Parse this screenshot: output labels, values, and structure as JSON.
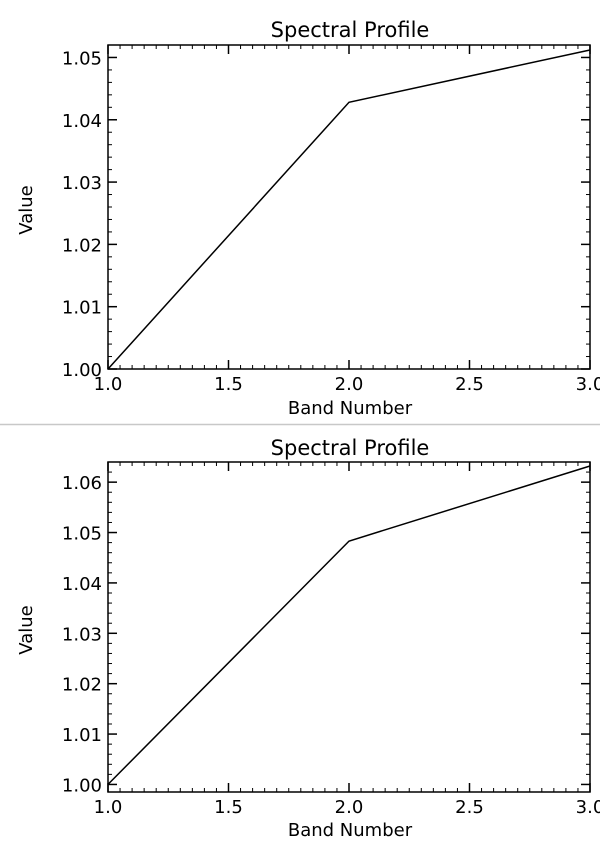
{
  "chart_data": [
    {
      "type": "line",
      "title": "Spectral Profile",
      "xlabel": "Band Number",
      "ylabel": "Value",
      "xlim": [
        1.0,
        3.0
      ],
      "ylim": [
        1.0,
        1.052
      ],
      "x_ticks": [
        "1.0",
        "1.5",
        "2.0",
        "2.5",
        "3.0"
      ],
      "y_ticks": [
        "1.00",
        "1.01",
        "1.02",
        "1.03",
        "1.04",
        "1.05"
      ],
      "x_tick_values": [
        1.0,
        1.5,
        2.0,
        2.5,
        3.0
      ],
      "y_tick_values": [
        1.0,
        1.01,
        1.02,
        1.03,
        1.04,
        1.05
      ],
      "grid": false,
      "line_color": "#000000",
      "series": [
        {
          "x": [
            1.0,
            2.0,
            3.0
          ],
          "y": [
            1.0,
            1.0428,
            1.0512
          ]
        }
      ]
    },
    {
      "type": "line",
      "title": "Spectral Profile",
      "xlabel": "Band Number",
      "ylabel": "Value",
      "xlim": [
        1.0,
        3.0
      ],
      "ylim": [
        0.9985,
        1.064
      ],
      "x_ticks": [
        "1.0",
        "1.5",
        "2.0",
        "2.5",
        "3.0"
      ],
      "y_ticks": [
        "1.00",
        "1.01",
        "1.02",
        "1.03",
        "1.04",
        "1.05",
        "1.06"
      ],
      "x_tick_values": [
        1.0,
        1.5,
        2.0,
        2.5,
        3.0
      ],
      "y_tick_values": [
        1.0,
        1.01,
        1.02,
        1.03,
        1.04,
        1.05,
        1.06
      ],
      "grid": false,
      "line_color": "#000000",
      "series": [
        {
          "x": [
            1.0,
            2.0,
            3.0
          ],
          "y": [
            1.0,
            1.0483,
            1.0632
          ]
        }
      ]
    }
  ]
}
